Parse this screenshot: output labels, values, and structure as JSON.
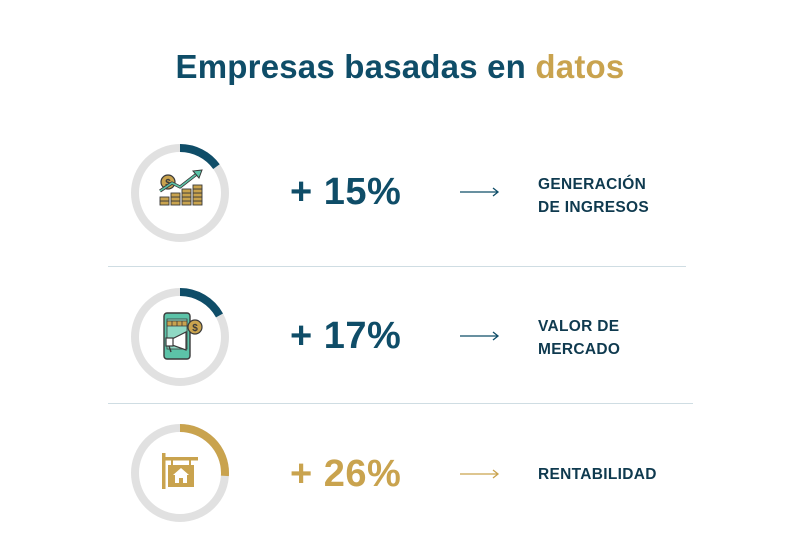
{
  "title": {
    "prefix": "Empresas basadas en",
    "accent": "datos"
  },
  "colors": {
    "primary": "#0f4d68",
    "gold": "#c9a34e",
    "ring_bg": "#e1e1e1",
    "label": "#0f3a4f"
  },
  "rows": [
    {
      "icon": "revenue-growth-icon",
      "progress": 0.15,
      "value": "+ 15%",
      "label_line1": "GENERACIÓN",
      "label_line2": "DE INGRESOS",
      "color": "#0f4d68"
    },
    {
      "icon": "market-value-icon",
      "progress": 0.17,
      "value": "+ 17%",
      "label_line1": "VALOR DE",
      "label_line2": "MERCADO",
      "color": "#0f4d68"
    },
    {
      "icon": "profitability-sign-icon",
      "progress": 0.26,
      "value": "+ 26%",
      "label_line1": "RENTABILIDAD",
      "label_line2": "",
      "color": "#c9a34e"
    }
  ]
}
